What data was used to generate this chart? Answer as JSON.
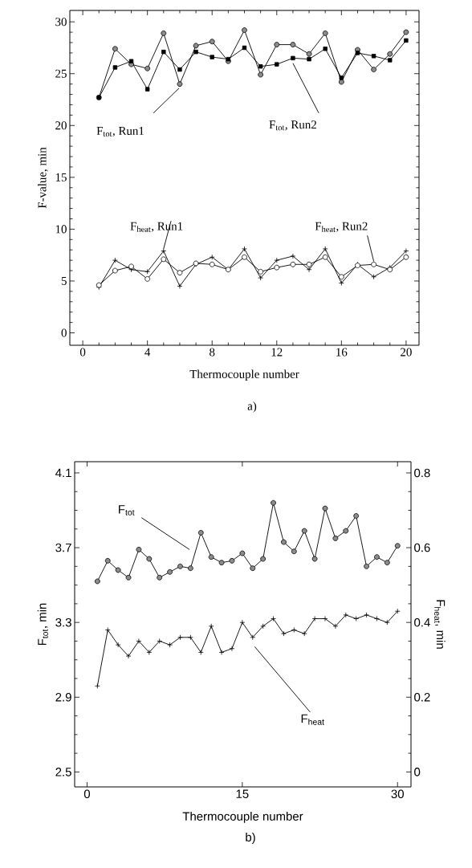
{
  "chart_data": [
    {
      "type": "line",
      "xlabel": "Thermocouple number",
      "ylabel": "F-value, min",
      "annotations": [
        "a)"
      ],
      "x": [
        1,
        2,
        3,
        4,
        5,
        6,
        7,
        8,
        9,
        10,
        11,
        12,
        13,
        14,
        15,
        16,
        17,
        18,
        19,
        20
      ],
      "xlim": [
        -0.8,
        20.8
      ],
      "ylim": [
        -1.2,
        31.1
      ],
      "xticks": [
        0,
        4,
        8,
        12,
        16,
        20
      ],
      "yticks": [
        0,
        5,
        10,
        15,
        20,
        25,
        30
      ],
      "series": [
        {
          "name": "F$_{tot}$, Run1",
          "color": "#8c8c8c",
          "marker": "circle",
          "values": [
            22.7,
            27.4,
            25.9,
            25.5,
            28.9,
            24.0,
            27.7,
            28.1,
            26.2,
            29.2,
            24.9,
            27.8,
            27.8,
            26.9,
            28.9,
            24.2,
            27.3,
            25.4,
            26.9,
            29.0
          ]
        },
        {
          "name": "F$_{tot}$, Run2",
          "color": "#000000",
          "marker": "square",
          "values": [
            22.7,
            25.6,
            26.2,
            23.5,
            27.1,
            25.4,
            27.1,
            26.6,
            26.4,
            27.5,
            25.7,
            25.9,
            26.5,
            26.4,
            27.4,
            24.6,
            27.0,
            26.7,
            26.3,
            28.2
          ]
        },
        {
          "name": "F$_{heat}$, Run1",
          "color": "#000000",
          "marker": "cross",
          "values": [
            4.4,
            7.0,
            6.1,
            5.9,
            7.9,
            4.5,
            6.6,
            7.3,
            6.1,
            8.1,
            5.3,
            7.0,
            7.4,
            6.1,
            8.1,
            4.8,
            6.6,
            5.4,
            6.3,
            7.9
          ]
        },
        {
          "name": "F$_{heat}$, Run2",
          "color": "#ffffff",
          "marker": "circle",
          "values": [
            4.6,
            6.0,
            6.4,
            5.2,
            7.1,
            5.8,
            6.7,
            6.6,
            6.1,
            7.3,
            5.9,
            6.3,
            6.6,
            6.6,
            7.3,
            5.4,
            6.5,
            6.6,
            6.1,
            7.3
          ]
        }
      ]
    },
    {
      "type": "line",
      "xlabel": "Thermocouple number",
      "ylabel": "F$_{tot}$, min",
      "y2label": "F$_{heat}$, min",
      "annotations": [
        "b)"
      ],
      "x": [
        1,
        2,
        3,
        4,
        5,
        6,
        7,
        8,
        9,
        10,
        11,
        12,
        13,
        14,
        15,
        16,
        17,
        18,
        19,
        20,
        21,
        22,
        23,
        24,
        25,
        26,
        27,
        28,
        29,
        30
      ],
      "xlim": [
        -1.2,
        31.3
      ],
      "ylim": [
        2.42,
        4.16
      ],
      "xticks": [
        0,
        15,
        30
      ],
      "yticks": [
        2.5,
        2.9,
        3.3,
        3.7,
        4.1
      ],
      "y2lim": [
        -0.04,
        0.83
      ],
      "y2ticks": [
        0,
        0.2,
        0.4,
        0.6,
        0.8
      ],
      "series": [
        {
          "name": "F$_{tot}$",
          "color": "#8c8c8c",
          "marker": "circle",
          "values": [
            3.52,
            3.63,
            3.58,
            3.54,
            3.69,
            3.64,
            3.54,
            3.57,
            3.6,
            3.59,
            3.78,
            3.65,
            3.62,
            3.63,
            3.67,
            3.59,
            3.64,
            3.94,
            3.73,
            3.68,
            3.79,
            3.64,
            3.91,
            3.75,
            3.79,
            3.87,
            3.6,
            3.65,
            3.62,
            3.71
          ]
        },
        {
          "name": "F$_{heat}$",
          "color": "#000000",
          "marker": "cross",
          "axis": "y2",
          "values": [
            0.23,
            0.38,
            0.34,
            0.31,
            0.35,
            0.32,
            0.35,
            0.34,
            0.36,
            0.36,
            0.32,
            0.39,
            0.32,
            0.33,
            0.4,
            0.36,
            0.39,
            0.41,
            0.37,
            0.38,
            0.37,
            0.41,
            0.41,
            0.39,
            0.42,
            0.41,
            0.42,
            0.41,
            0.4,
            0.43
          ]
        }
      ]
    }
  ]
}
